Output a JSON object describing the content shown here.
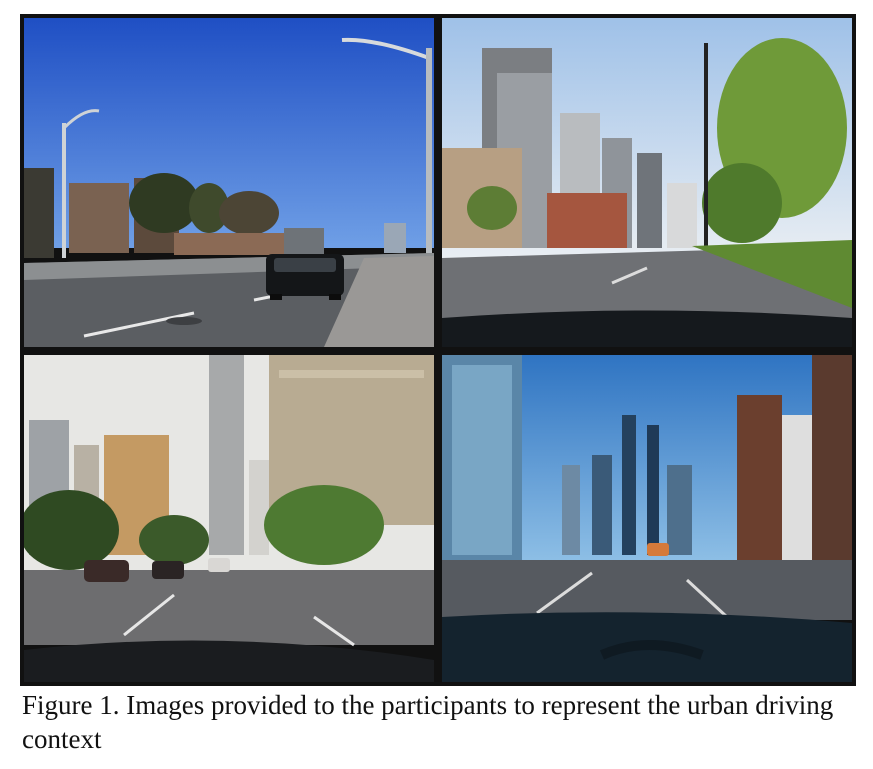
{
  "figure": {
    "caption": "Figure 1. Images provided to the participants to represent the urban driving context",
    "panels": [
      {
        "name": "suburban-road-street-view"
      },
      {
        "name": "condo-avenue-dashboard-view"
      },
      {
        "name": "downtown-boulevard-dashboard-view"
      },
      {
        "name": "city-street-skyline-dashboard-view"
      }
    ]
  },
  "colors": {
    "sky_blue": "#2a5fc9",
    "road_gray": "#5b5e62",
    "dashboard": "#15191d"
  }
}
